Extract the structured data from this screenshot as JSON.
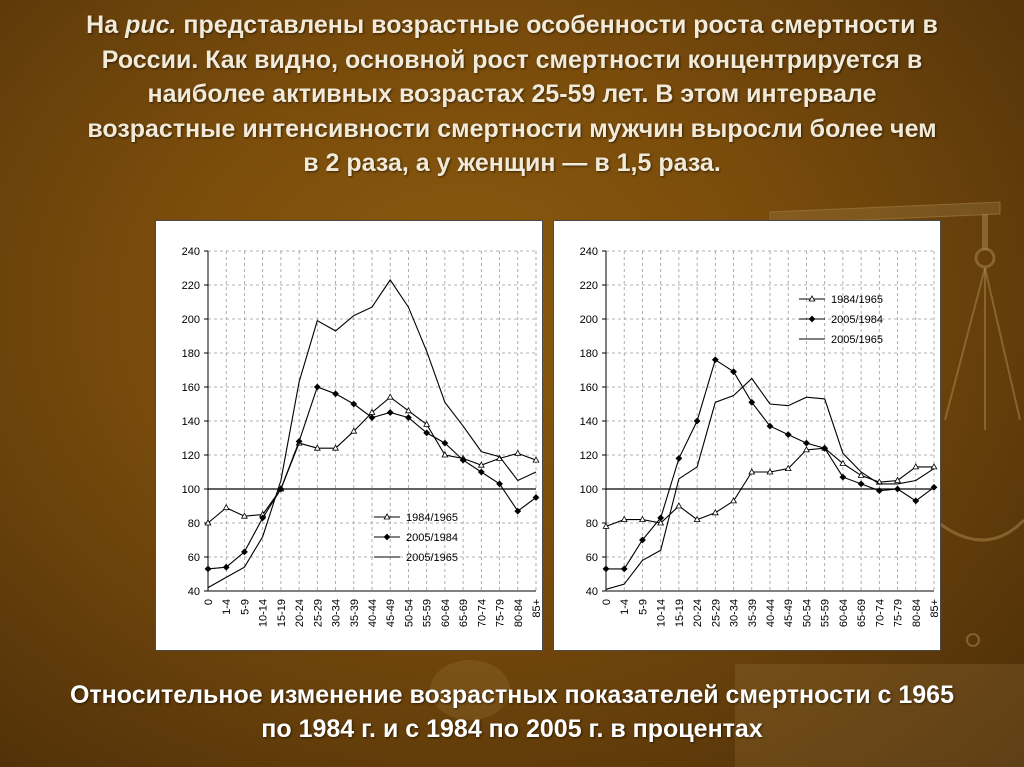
{
  "slide": {
    "intro_parts": {
      "p1": "На ",
      "p2": "рис.",
      "p3": " представлены возрастные особенности роста смертности в России. Как видно, основной рост смертности концентрируется в наиболее активных возрастах 25-59 лет. В этом интервале возрастные интенсивности смертности мужчин выросли более чем в 2 раза, а у женщин — в 1,5 раза."
    },
    "caption": "Относительное изменение возрастных показателей смертности с 1965 по 1984 г. и с 1984 по 2005 г. в процентах"
  },
  "colors": {
    "background": "#7a4c0c",
    "text": "#f2ead8",
    "panel": "#ffffff",
    "line": "#000000"
  },
  "chart_data": [
    {
      "type": "line",
      "categories": [
        "0",
        "1-4",
        "5-9",
        "10-14",
        "15-19",
        "20-24",
        "25-29",
        "30-34",
        "35-39",
        "40-44",
        "45-49",
        "50-54",
        "55-59",
        "60-64",
        "65-69",
        "70-74",
        "75-79",
        "80-84",
        "85+"
      ],
      "ylim": [
        40,
        240
      ],
      "yticks": [
        40,
        60,
        80,
        100,
        120,
        140,
        160,
        180,
        200,
        220,
        240
      ],
      "reference_line": 100,
      "grid": true,
      "legend_position": "bottom-right",
      "series": [
        {
          "name": "1984/1965",
          "marker": "open-triangle",
          "values": [
            80,
            89,
            84,
            85,
            100,
            127,
            124,
            124,
            134,
            145,
            154,
            146,
            138,
            120,
            118,
            114,
            118,
            121,
            117
          ]
        },
        {
          "name": "2005/1984",
          "marker": "filled-diamond",
          "values": [
            53,
            54,
            63,
            83,
            100,
            128,
            160,
            156,
            150,
            142,
            145,
            142,
            133,
            127,
            117,
            110,
            103,
            87,
            95
          ]
        },
        {
          "name": "2005/1965",
          "marker": "none",
          "values": [
            42,
            48,
            54,
            72,
            105,
            163,
            199,
            193,
            202,
            207,
            223,
            207,
            181,
            151,
            137,
            122,
            119,
            105,
            110
          ]
        }
      ]
    },
    {
      "type": "line",
      "categories": [
        "0",
        "1-4",
        "5-9",
        "10-14",
        "15-19",
        "20-24",
        "25-29",
        "30-34",
        "35-39",
        "40-44",
        "45-49",
        "50-54",
        "55-59",
        "60-64",
        "65-69",
        "70-74",
        "75-79",
        "80-84",
        "85+"
      ],
      "ylim": [
        40,
        240
      ],
      "yticks": [
        40,
        60,
        80,
        100,
        120,
        140,
        160,
        180,
        200,
        220,
        240
      ],
      "reference_line": 100,
      "grid": true,
      "legend_position": "top-right",
      "series": [
        {
          "name": "1984/1965",
          "marker": "open-triangle",
          "values": [
            78,
            82,
            82,
            80,
            90,
            82,
            86,
            93,
            110,
            110,
            112,
            123,
            124,
            115,
            108,
            104,
            105,
            113,
            113
          ]
        },
        {
          "name": "2005/1984",
          "marker": "filled-diamond",
          "values": [
            53,
            53,
            70,
            83,
            118,
            140,
            176,
            169,
            151,
            137,
            132,
            127,
            124,
            107,
            103,
            99,
            100,
            93,
            101
          ]
        },
        {
          "name": "2005/1965",
          "marker": "none",
          "values": [
            41,
            44,
            58,
            64,
            106,
            113,
            151,
            155,
            165,
            150,
            149,
            154,
            153,
            121,
            110,
            103,
            103,
            105,
            112
          ]
        }
      ]
    }
  ]
}
